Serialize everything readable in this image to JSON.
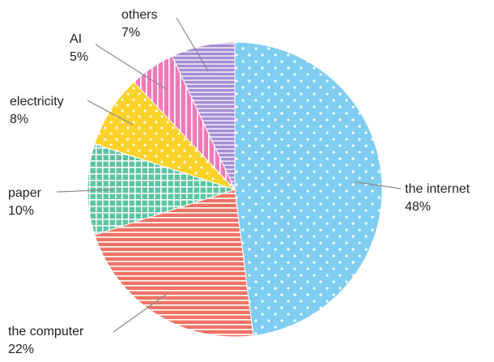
{
  "chart_data": {
    "type": "pie",
    "title": "",
    "legend": "none",
    "slices": [
      {
        "label": "the internet",
        "value": 48,
        "value_label": "48%",
        "color": "#7fcdf0",
        "pattern": "dots"
      },
      {
        "label": "the computer",
        "value": 22,
        "value_label": "22%",
        "color": "#f07366",
        "pattern": "horizontal-stripes"
      },
      {
        "label": "paper",
        "value": 10,
        "value_label": "10%",
        "color": "#5cc4a4",
        "pattern": "grid"
      },
      {
        "label": "electricity",
        "value": 8,
        "value_label": "8%",
        "color": "#fcd22a",
        "pattern": "dots"
      },
      {
        "label": "AI",
        "value": 5,
        "value_label": "5%",
        "color": "#f07ab8",
        "pattern": "vertical-stripes"
      },
      {
        "label": "others",
        "value": 7,
        "value_label": "7%",
        "color": "#a68cd6",
        "pattern": "horizontal-stripes"
      }
    ]
  }
}
